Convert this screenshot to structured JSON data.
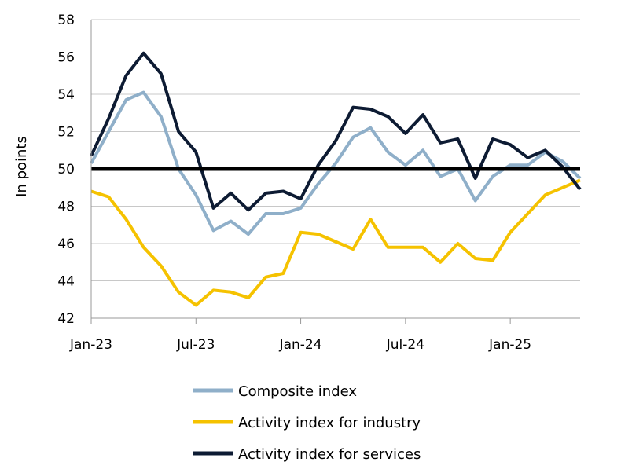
{
  "chart_data": {
    "type": "line",
    "ylabel": "In points",
    "ylim": [
      42,
      58
    ],
    "y_ticks": [
      "42",
      "44",
      "46",
      "48",
      "50",
      "52",
      "54",
      "56",
      "58"
    ],
    "x_tick_labels": [
      "Jan-23",
      "Jul-23",
      "Jan-24",
      "Jul-24",
      "Jan-25"
    ],
    "x": [
      "Jan-23",
      "Feb-23",
      "Mar-23",
      "Apr-23",
      "May-23",
      "Jun-23",
      "Jul-23",
      "Aug-23",
      "Sep-23",
      "Oct-23",
      "Nov-23",
      "Dec-23",
      "Jan-24",
      "Feb-24",
      "Mar-24",
      "Apr-24",
      "May-24",
      "Jun-24",
      "Jul-24",
      "Aug-24",
      "Sep-24",
      "Oct-24",
      "Nov-24",
      "Dec-24",
      "Jan-25",
      "Feb-25",
      "Mar-25",
      "Apr-25",
      "May-25"
    ],
    "reference_line": 50,
    "grid": true,
    "legend_position": "bottom",
    "series": [
      {
        "name": "Composite index",
        "color": "#8fafc9",
        "values": [
          50.3,
          52.0,
          53.7,
          54.1,
          52.8,
          50.0,
          48.6,
          46.7,
          47.2,
          46.5,
          47.6,
          47.6,
          47.9,
          49.2,
          50.3,
          51.7,
          52.2,
          50.9,
          50.2,
          51.0,
          49.6,
          50.0,
          48.3,
          49.6,
          50.2,
          50.2,
          50.9,
          50.4,
          49.5
        ]
      },
      {
        "name": "Activity index for industry",
        "color": "#f5c200",
        "values": [
          48.8,
          48.5,
          47.3,
          45.8,
          44.8,
          43.4,
          42.7,
          43.5,
          43.4,
          43.1,
          44.2,
          44.4,
          46.6,
          46.5,
          46.1,
          45.7,
          47.3,
          45.8,
          45.8,
          45.8,
          45.0,
          46.0,
          45.2,
          45.1,
          46.6,
          47.6,
          48.6,
          49.0,
          49.4
        ]
      },
      {
        "name": "Activity index for services",
        "color": "#0d1b33",
        "values": [
          50.7,
          52.7,
          55.0,
          56.2,
          55.1,
          52.0,
          50.9,
          47.9,
          48.7,
          47.8,
          48.7,
          48.8,
          48.4,
          50.2,
          51.5,
          53.3,
          53.2,
          52.8,
          51.9,
          52.9,
          51.4,
          51.6,
          49.5,
          51.6,
          51.3,
          50.6,
          51.0,
          50.1,
          48.9
        ]
      }
    ]
  }
}
